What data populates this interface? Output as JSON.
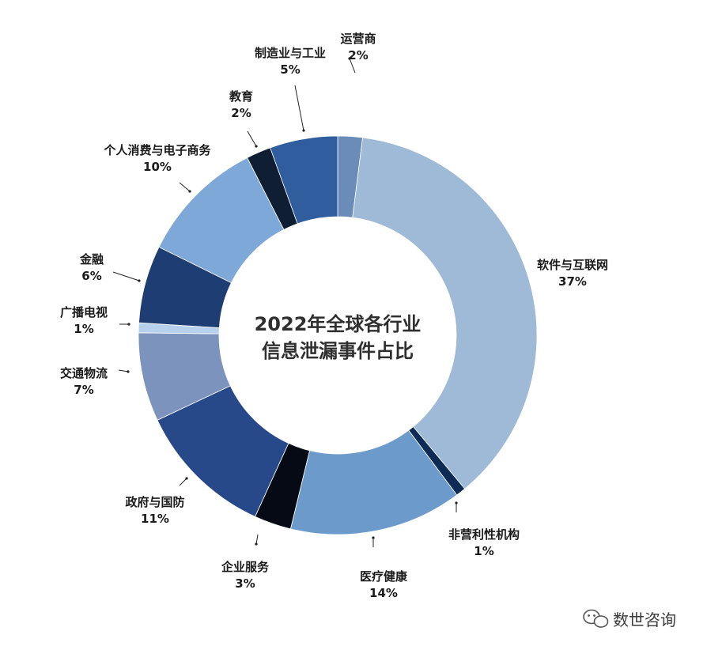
{
  "chart_data": {
    "type": "pie",
    "variant": "donut",
    "title_lines": [
      "2022年全球各行业",
      "信息泄漏事件占比"
    ],
    "slices": [
      {
        "label": "运营商",
        "pct_label": "2%",
        "value": 2,
        "color": "#6b8bb9"
      },
      {
        "label": "软件与互联网",
        "pct_label": "37%",
        "value": 37,
        "color": "#9fbad6"
      },
      {
        "label": "非营利性机构",
        "pct_label": "1%",
        "value": 0.8,
        "color": "#0d2b55"
      },
      {
        "label": "医疗健康",
        "pct_label": "14%",
        "value": 14,
        "color": "#6b9acb"
      },
      {
        "label": "企业服务",
        "pct_label": "3%",
        "value": 3,
        "color": "#050a14"
      },
      {
        "label": "政府与国防",
        "pct_label": "11%",
        "value": 11.2,
        "color": "#27498a"
      },
      {
        "label": "交通物流",
        "pct_label": "7%",
        "value": 7.2,
        "color": "#7b93bd"
      },
      {
        "label": "广播电视",
        "pct_label": "1%",
        "value": 0.8,
        "color": "#b7d1ec"
      },
      {
        "label": "金融",
        "pct_label": "6%",
        "value": 6.3,
        "color": "#1e3d72"
      },
      {
        "label": "个人消费与电子商务",
        "pct_label": "10%",
        "value": 10.2,
        "color": "#7ea8d8"
      },
      {
        "label": "教育",
        "pct_label": "2%",
        "value": 2,
        "color": "#0f1e33"
      },
      {
        "label": "制造业与工业",
        "pct_label": "5%",
        "value": 5.5,
        "color": "#2f5d9d"
      }
    ]
  },
  "watermark": {
    "text": "数世咨询",
    "icon": "wechat-icon"
  }
}
